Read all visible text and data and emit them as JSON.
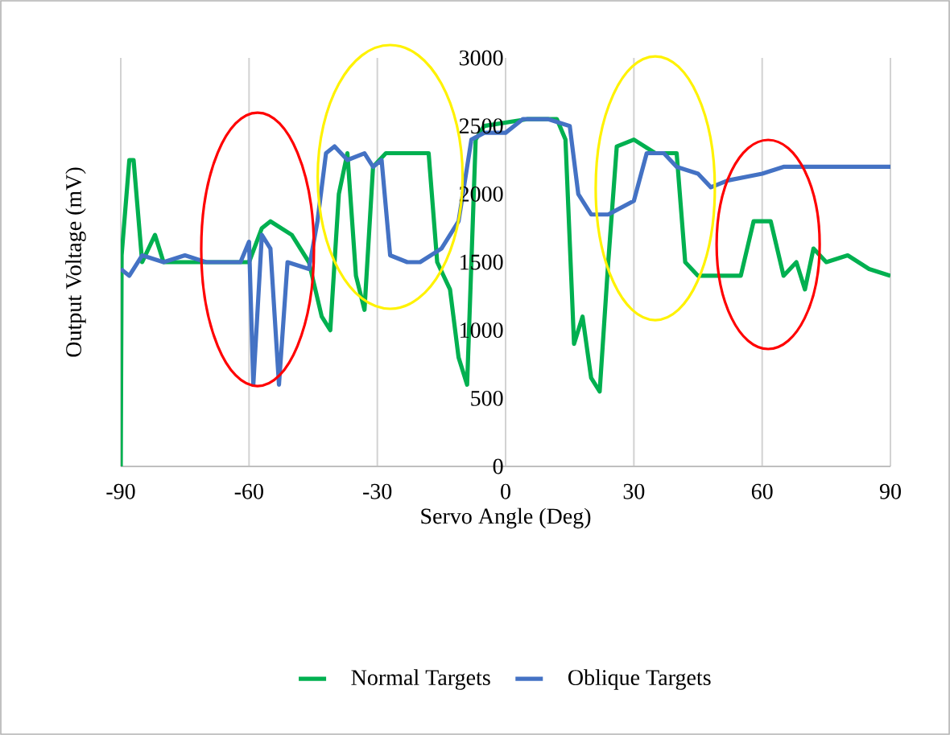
{
  "chart_data": {
    "type": "line",
    "xlabel": "Servo Angle (Deg)",
    "ylabel": "Output Voltage (mV)",
    "xlim": [
      -90,
      90
    ],
    "ylim": [
      0,
      3000
    ],
    "xticks": [
      -90,
      -60,
      -30,
      0,
      30,
      60,
      90
    ],
    "yticks": [
      0,
      500,
      1000,
      1500,
      2000,
      2500,
      3000
    ],
    "grid": true,
    "legend": "bottom",
    "series": [
      {
        "name": "Normal Targets",
        "color": "#00b050",
        "x": [
          -90,
          -89.8,
          -88,
          -87,
          -85,
          -82,
          -80,
          -75,
          -65,
          -60,
          -57,
          -55,
          -50,
          -46,
          -43,
          -41,
          -39,
          -37,
          -35,
          -33,
          -31,
          -28,
          -20,
          -18,
          -16,
          -13,
          -11,
          -9,
          -7,
          -5,
          5,
          12,
          14,
          16,
          18,
          20,
          22,
          24,
          26,
          30,
          35,
          40,
          42,
          45,
          50,
          55,
          58,
          62,
          65,
          68,
          70,
          72,
          75,
          80,
          85,
          90
        ],
        "values": [
          0,
          1550,
          2250,
          2250,
          1500,
          1700,
          1500,
          1500,
          1500,
          1500,
          1750,
          1800,
          1700,
          1500,
          1100,
          1000,
          2000,
          2300,
          1400,
          1150,
          2200,
          2300,
          2300,
          2300,
          1500,
          1300,
          800,
          600,
          2400,
          2500,
          2550,
          2550,
          2400,
          900,
          1100,
          650,
          550,
          1500,
          2350,
          2400,
          2300,
          2300,
          1500,
          1400,
          1400,
          1400,
          1800,
          1800,
          1400,
          1500,
          1300,
          1600,
          1500,
          1550,
          1450,
          1400
        ]
      },
      {
        "name": "Oblique Targets",
        "color": "#4472c4",
        "x": [
          -90,
          -88,
          -85,
          -80,
          -75,
          -70,
          -62,
          -60,
          -59,
          -57,
          -55,
          -53,
          -51,
          -46,
          -44,
          -42,
          -40,
          -37,
          -33,
          -31,
          -29,
          -27,
          -23,
          -20,
          -15,
          -11,
          -8,
          -5,
          0,
          4,
          10,
          15,
          17,
          20,
          24,
          30,
          33,
          37,
          40,
          45,
          48,
          52,
          60,
          65,
          70,
          80,
          90
        ],
        "values": [
          1450,
          1400,
          1550,
          1500,
          1550,
          1500,
          1500,
          1650,
          600,
          1700,
          1600,
          600,
          1500,
          1450,
          1800,
          2300,
          2350,
          2250,
          2300,
          2200,
          2250,
          1550,
          1500,
          1500,
          1600,
          1800,
          2400,
          2450,
          2450,
          2550,
          2550,
          2500,
          2000,
          1850,
          1850,
          1950,
          2300,
          2300,
          2200,
          2150,
          2050,
          2100,
          2150,
          2200,
          2200,
          2200,
          2200
        ]
      }
    ]
  }
}
